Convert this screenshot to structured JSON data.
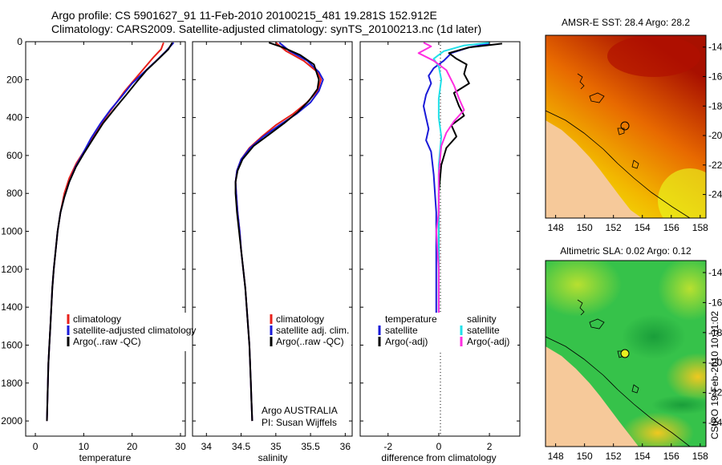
{
  "header": {
    "line1": "Argo profile: CS 5901627_91 11-Feb-2010 20100215_481 19.281S 152.912E",
    "line2": "Climatology: CARS2009. Satellite-adjusted climatology: synTS_20100213.nc (1d later)"
  },
  "side_label": "CSIRO 19-Feb-2010 10:31:02",
  "colors": {
    "climatology": "#e8201a",
    "satellite": "#1a1ad8",
    "argo": "#000000",
    "satellite_salinity": "#22e0e8",
    "argo_salinity": "#ff2ee0"
  },
  "chart_data": [
    {
      "type": "line",
      "xlabel": "temperature",
      "ylabel": "",
      "xlim": [
        -2,
        31
      ],
      "ylim": [
        2080,
        0
      ],
      "xticks": [
        0,
        10,
        20,
        30
      ],
      "yticks": [
        0,
        200,
        400,
        600,
        800,
        1000,
        1200,
        1400,
        1600,
        1800,
        2000
      ],
      "legend": {
        "placement": "lower-middle",
        "entries": [
          "climatology",
          "satellite-adjusted climatology",
          "Argo(..raw -QC)"
        ]
      },
      "series": [
        {
          "name": "climatology",
          "color": "#e8201a",
          "points": [
            [
              26.5,
              5
            ],
            [
              26.0,
              40
            ],
            [
              24.5,
              80
            ],
            [
              22.5,
              140
            ],
            [
              20.5,
              200
            ],
            [
              18.5,
              260
            ],
            [
              16.5,
              330
            ],
            [
              14.5,
              400
            ],
            [
              12.5,
              480
            ],
            [
              10.5,
              560
            ],
            [
              8.5,
              640
            ],
            [
              7.0,
              720
            ],
            [
              6.0,
              800
            ],
            [
              5.2,
              900
            ],
            [
              4.6,
              1000
            ],
            [
              4.2,
              1100
            ],
            [
              3.8,
              1200
            ],
            [
              3.5,
              1300
            ],
            [
              3.3,
              1400
            ],
            [
              3.1,
              1500
            ],
            [
              2.9,
              1600
            ],
            [
              2.7,
              1700
            ],
            [
              2.6,
              1800
            ],
            [
              2.5,
              1900
            ],
            [
              2.4,
              2000
            ]
          ]
        },
        {
          "name": "satellite-adjusted climatology",
          "color": "#1a1ad8",
          "points": [
            [
              28.6,
              5
            ],
            [
              27.0,
              50
            ],
            [
              25.0,
              100
            ],
            [
              22.5,
              160
            ],
            [
              20.0,
              220
            ],
            [
              17.8,
              290
            ],
            [
              15.5,
              360
            ],
            [
              13.5,
              430
            ],
            [
              11.5,
              510
            ],
            [
              9.8,
              590
            ],
            [
              8.3,
              660
            ],
            [
              7.0,
              740
            ],
            [
              6.0,
              820
            ],
            [
              5.2,
              900
            ],
            [
              4.6,
              1000
            ],
            [
              4.2,
              1100
            ],
            [
              3.8,
              1200
            ],
            [
              3.5,
              1300
            ],
            [
              3.3,
              1400
            ],
            [
              3.1,
              1500
            ],
            [
              2.9,
              1600
            ],
            [
              2.7,
              1700
            ],
            [
              2.6,
              1800
            ],
            [
              2.5,
              1900
            ],
            [
              2.4,
              2000
            ]
          ]
        },
        {
          "name": "Argo(..raw -QC)",
          "color": "#000000",
          "points": [
            [
              28.3,
              5
            ],
            [
              27.5,
              40
            ],
            [
              25.5,
              90
            ],
            [
              23.0,
              150
            ],
            [
              21.0,
              210
            ],
            [
              18.8,
              280
            ],
            [
              16.5,
              350
            ],
            [
              14.0,
              430
            ],
            [
              12.0,
              510
            ],
            [
              10.0,
              590
            ],
            [
              8.4,
              660
            ],
            [
              7.0,
              740
            ],
            [
              6.0,
              820
            ],
            [
              5.2,
              900
            ],
            [
              4.6,
              1000
            ],
            [
              4.2,
              1100
            ],
            [
              3.8,
              1200
            ],
            [
              3.5,
              1300
            ],
            [
              3.3,
              1400
            ],
            [
              3.1,
              1500
            ],
            [
              2.9,
              1600
            ],
            [
              2.7,
              1700
            ],
            [
              2.6,
              1800
            ],
            [
              2.5,
              1900
            ],
            [
              2.4,
              2000
            ]
          ]
        }
      ]
    },
    {
      "type": "line",
      "xlabel": "salinity",
      "xlim": [
        33.8,
        36.1
      ],
      "ylim": [
        2080,
        0
      ],
      "xticks": [
        34,
        34.5,
        35,
        35.5,
        36
      ],
      "legend": {
        "placement": "lower-right",
        "entries": [
          "climatology",
          "satellite adj. clim.",
          "Argo(..raw -QC)"
        ]
      },
      "annotations": [
        "Argo AUSTRALIA",
        "PI: Susan Wijffels"
      ],
      "series": [
        {
          "name": "climatology",
          "color": "#e8201a",
          "points": [
            [
              35.0,
              5
            ],
            [
              35.15,
              50
            ],
            [
              35.4,
              100
            ],
            [
              35.6,
              160
            ],
            [
              35.65,
              200
            ],
            [
              35.6,
              260
            ],
            [
              35.45,
              320
            ],
            [
              35.25,
              380
            ],
            [
              35.0,
              440
            ],
            [
              34.8,
              500
            ],
            [
              34.62,
              560
            ],
            [
              34.5,
              620
            ],
            [
              34.44,
              680
            ],
            [
              34.42,
              740
            ],
            [
              34.43,
              800
            ],
            [
              34.45,
              900
            ],
            [
              34.48,
              1000
            ],
            [
              34.5,
              1100
            ],
            [
              34.53,
              1200
            ],
            [
              34.56,
              1300
            ],
            [
              34.58,
              1400
            ],
            [
              34.6,
              1500
            ],
            [
              34.62,
              1600
            ],
            [
              34.63,
              1700
            ],
            [
              34.64,
              1800
            ],
            [
              34.65,
              1900
            ],
            [
              34.66,
              2000
            ]
          ]
        },
        {
          "name": "satellite adj. clim.",
          "color": "#1a1ad8",
          "points": [
            [
              35.05,
              5
            ],
            [
              35.2,
              50
            ],
            [
              35.45,
              100
            ],
            [
              35.62,
              160
            ],
            [
              35.68,
              200
            ],
            [
              35.62,
              260
            ],
            [
              35.5,
              320
            ],
            [
              35.3,
              380
            ],
            [
              35.05,
              440
            ],
            [
              34.82,
              500
            ],
            [
              34.63,
              560
            ],
            [
              34.5,
              620
            ],
            [
              34.44,
              680
            ],
            [
              34.42,
              740
            ],
            [
              34.43,
              800
            ],
            [
              34.45,
              900
            ],
            [
              34.48,
              1000
            ],
            [
              34.5,
              1100
            ],
            [
              34.53,
              1200
            ],
            [
              34.56,
              1300
            ],
            [
              34.58,
              1400
            ],
            [
              34.6,
              1500
            ],
            [
              34.62,
              1600
            ],
            [
              34.63,
              1700
            ],
            [
              34.64,
              1800
            ],
            [
              34.65,
              1900
            ],
            [
              34.66,
              2000
            ]
          ]
        },
        {
          "name": "Argo(..raw -QC)",
          "color": "#000000",
          "points": [
            [
              34.9,
              5
            ],
            [
              35.1,
              30
            ],
            [
              35.35,
              70
            ],
            [
              35.55,
              120
            ],
            [
              35.62,
              200
            ],
            [
              35.6,
              250
            ],
            [
              35.48,
              310
            ],
            [
              35.32,
              370
            ],
            [
              35.12,
              430
            ],
            [
              34.9,
              490
            ],
            [
              34.68,
              550
            ],
            [
              34.52,
              620
            ],
            [
              34.45,
              680
            ],
            [
              34.42,
              740
            ],
            [
              34.42,
              800
            ],
            [
              34.44,
              900
            ],
            [
              34.47,
              1000
            ],
            [
              34.5,
              1100
            ],
            [
              34.53,
              1200
            ],
            [
              34.56,
              1300
            ],
            [
              34.58,
              1400
            ],
            [
              34.6,
              1500
            ],
            [
              34.62,
              1600
            ],
            [
              34.63,
              1700
            ],
            [
              34.64,
              1800
            ],
            [
              34.65,
              1900
            ],
            [
              34.66,
              2000
            ]
          ]
        }
      ]
    },
    {
      "type": "line",
      "xlabel": "difference from climatology",
      "xlim": [
        -3.1,
        3.2
      ],
      "ylim": [
        2080,
        0
      ],
      "xticks": [
        -2,
        0,
        2
      ],
      "legend": {
        "placement": "lower",
        "entries": [
          "temperature",
          "satellite",
          "Argo(-adj)",
          "salinity",
          "satellite",
          "Argo(-adj)"
        ]
      },
      "series": [
        {
          "name": "temperature satellite",
          "color": "#1a1ad8",
          "points": [
            [
              2.0,
              10
            ],
            [
              1.2,
              30
            ],
            [
              0.5,
              60
            ],
            [
              0.2,
              100
            ],
            [
              -0.2,
              140
            ],
            [
              -0.4,
              180
            ],
            [
              -0.3,
              220
            ],
            [
              -0.5,
              280
            ],
            [
              -0.6,
              340
            ],
            [
              -0.5,
              400
            ],
            [
              -0.4,
              460
            ],
            [
              -0.5,
              520
            ],
            [
              -0.3,
              580
            ],
            [
              -0.2,
              700
            ],
            [
              -0.1,
              900
            ],
            [
              -0.1,
              1200
            ],
            [
              -0.1,
              1470
            ]
          ]
        },
        {
          "name": "temperature Argo(-adj)",
          "color": "#000000",
          "points": [
            [
              2.5,
              10
            ],
            [
              1.2,
              30
            ],
            [
              0.4,
              60
            ],
            [
              0.7,
              90
            ],
            [
              1.1,
              120
            ],
            [
              1.0,
              170
            ],
            [
              1.2,
              220
            ],
            [
              0.6,
              270
            ],
            [
              0.8,
              340
            ],
            [
              1.0,
              390
            ],
            [
              0.5,
              440
            ],
            [
              0.7,
              500
            ],
            [
              0.3,
              560
            ],
            [
              0.1,
              650
            ],
            [
              0.0,
              800
            ],
            [
              0.0,
              1100
            ],
            [
              0.0,
              1470
            ]
          ]
        },
        {
          "name": "salinity satellite",
          "color": "#22e0e8",
          "points": [
            [
              2.0,
              5
            ],
            [
              1.0,
              20
            ],
            [
              0.2,
              50
            ],
            [
              -0.2,
              90
            ],
            [
              0.0,
              130
            ],
            [
              0.1,
              200
            ],
            [
              0.0,
              300
            ],
            [
              0.0,
              400
            ],
            [
              0.1,
              500
            ],
            [
              0.0,
              650
            ],
            [
              0.0,
              850
            ],
            [
              0.0,
              1100
            ],
            [
              0.0,
              1470
            ]
          ]
        },
        {
          "name": "salinity Argo(-adj)",
          "color": "#ff2ee0",
          "points": [
            [
              -0.6,
              5
            ],
            [
              -0.3,
              25
            ],
            [
              -0.8,
              60
            ],
            [
              -0.2,
              100
            ],
            [
              0.3,
              150
            ],
            [
              0.6,
              230
            ],
            [
              0.8,
              300
            ],
            [
              1.0,
              360
            ],
            [
              0.6,
              420
            ],
            [
              0.3,
              480
            ],
            [
              0.1,
              550
            ],
            [
              0.0,
              700
            ],
            [
              0.0,
              900
            ],
            [
              -0.1,
              1000
            ],
            [
              0.0,
              1200
            ],
            [
              0.0,
              1470
            ]
          ]
        }
      ]
    },
    {
      "type": "heatmap",
      "title": "AMSR-E SST: 28.4 Argo: 28.2",
      "xlim": [
        147.3,
        158.4
      ],
      "ylim": [
        -25.6,
        -13.2
      ],
      "xticks": [
        148,
        150,
        152,
        154,
        156,
        158
      ],
      "yticks": [
        -14,
        -16,
        -18,
        -20,
        -22,
        -24
      ],
      "argo_position": [
        152.9,
        -19.3
      ]
    },
    {
      "type": "heatmap",
      "title": "Altimetric SLA: 0.02 Argo: 0.12",
      "xlim": [
        147.3,
        158.4
      ],
      "ylim": [
        -25.6,
        -13.2
      ],
      "xticks": [
        148,
        150,
        152,
        154,
        156,
        158
      ],
      "yticks": [
        -14,
        -16,
        -18,
        -20,
        -22,
        -24
      ],
      "argo_position": [
        152.9,
        -19.3
      ]
    }
  ]
}
